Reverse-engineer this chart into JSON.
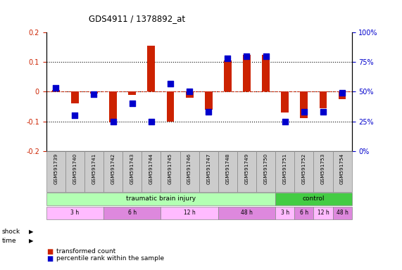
{
  "title": "GDS4911 / 1378892_at",
  "samples": [
    "GSM591739",
    "GSM591740",
    "GSM591741",
    "GSM591742",
    "GSM591743",
    "GSM591744",
    "GSM591745",
    "GSM591746",
    "GSM591747",
    "GSM591748",
    "GSM591749",
    "GSM591750",
    "GSM591751",
    "GSM591752",
    "GSM591753",
    "GSM591754"
  ],
  "red_values": [
    0.005,
    -0.04,
    -0.005,
    -0.103,
    -0.01,
    0.155,
    -0.1,
    -0.02,
    -0.06,
    0.105,
    0.125,
    0.125,
    -0.07,
    -0.09,
    -0.055,
    -0.025
  ],
  "blue_values_pct": [
    53,
    30,
    48,
    25,
    40,
    25,
    57,
    50,
    33,
    78,
    80,
    80,
    25,
    33,
    33,
    49
  ],
  "ylim_left": [
    -0.2,
    0.2
  ],
  "ylim_right": [
    0,
    100
  ],
  "left_yticks": [
    -0.2,
    -0.1,
    0.0,
    0.1,
    0.2
  ],
  "left_yticklabels": [
    "-0.2",
    "-0.1",
    "0",
    "0.1",
    "0.2"
  ],
  "right_yticks": [
    0,
    25,
    50,
    75,
    100
  ],
  "right_yticklabels": [
    "0%",
    "25%",
    "50%",
    "75%",
    "100%"
  ],
  "shock_groups": [
    {
      "label": "traumatic brain injury",
      "start": 0,
      "end": 12,
      "color": "#b3ffb3"
    },
    {
      "label": "control",
      "start": 12,
      "end": 16,
      "color": "#44cc44"
    }
  ],
  "time_groups": [
    {
      "label": "3 h",
      "start": 0,
      "end": 3,
      "color": "#ffbbff"
    },
    {
      "label": "6 h",
      "start": 3,
      "end": 6,
      "color": "#dd88dd"
    },
    {
      "label": "12 h",
      "start": 6,
      "end": 9,
      "color": "#ffbbff"
    },
    {
      "label": "48 h",
      "start": 9,
      "end": 12,
      "color": "#dd88dd"
    },
    {
      "label": "3 h",
      "start": 12,
      "end": 13,
      "color": "#ffbbff"
    },
    {
      "label": "6 h",
      "start": 13,
      "end": 14,
      "color": "#dd88dd"
    },
    {
      "label": "12 h",
      "start": 14,
      "end": 15,
      "color": "#ffbbff"
    },
    {
      "label": "48 h",
      "start": 15,
      "end": 16,
      "color": "#dd88dd"
    }
  ],
  "red_color": "#cc2200",
  "blue_color": "#0000cc",
  "bar_width": 0.4,
  "dot_size": 28,
  "bg_color": "#ffffff",
  "sample_box_color": "#cccccc",
  "label_color_left": "#cc2200",
  "label_color_right": "#0000cc"
}
